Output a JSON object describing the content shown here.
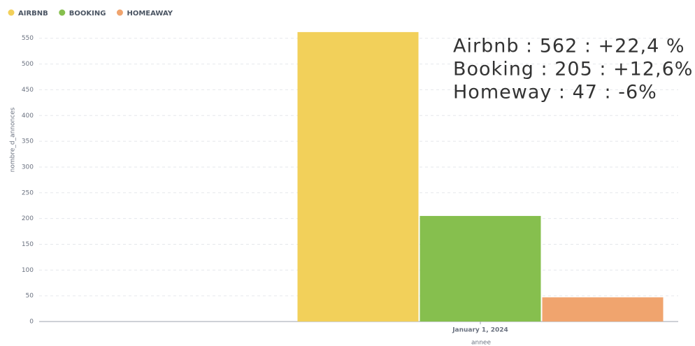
{
  "chart_data": {
    "type": "bar",
    "categories": [
      "January 1, 2024"
    ],
    "series": [
      {
        "name": "AIRBNB",
        "color": "#f2d05a",
        "values": [
          562
        ]
      },
      {
        "name": "BOOKING",
        "color": "#86bf4e",
        "values": [
          205
        ]
      },
      {
        "name": "HOMEAWAY",
        "color": "#f0a46e",
        "values": [
          47
        ]
      }
    ],
    "ylabel": "nombre_d_annonces",
    "xlabel": "annee",
    "ylim": [
      0,
      570
    ],
    "yticks": [
      0,
      50,
      100,
      150,
      200,
      250,
      300,
      350,
      400,
      450,
      500,
      550
    ],
    "grid": true,
    "legend": "top-left",
    "annotations": [
      "Airbnb : 562 : +22,4 %",
      "Booking : 205 : +12,6%",
      "Homeway : 47 : -6%"
    ]
  }
}
